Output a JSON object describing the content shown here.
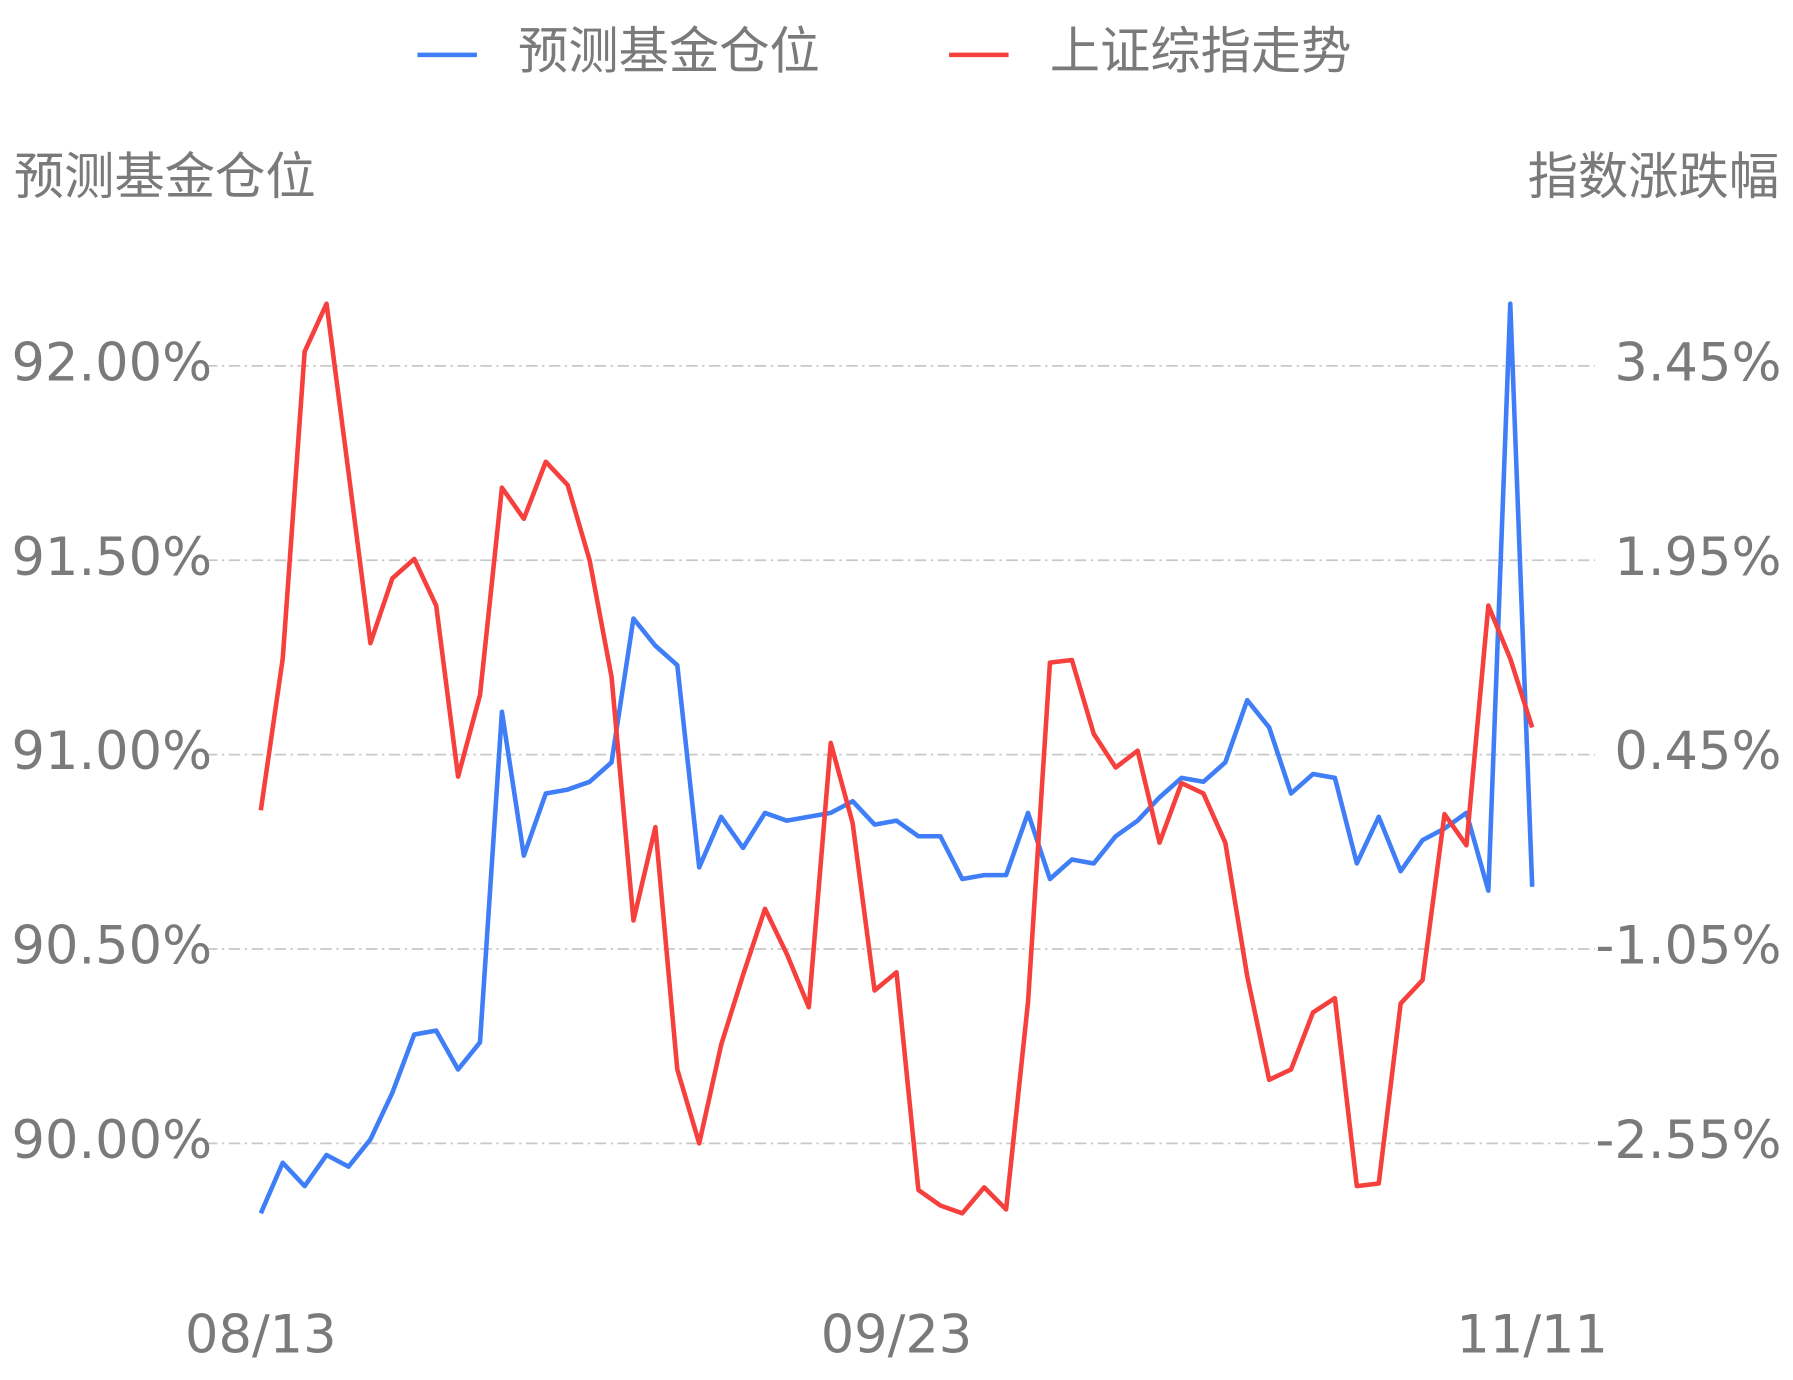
{
  "chart_data": {
    "type": "line",
    "categories": [
      "08/13",
      null,
      null,
      null,
      null,
      null,
      null,
      null,
      null,
      null,
      null,
      null,
      null,
      null,
      null,
      null,
      null,
      null,
      null,
      null,
      null,
      null,
      null,
      null,
      null,
      null,
      null,
      null,
      null,
      "09/23",
      null,
      null,
      null,
      null,
      null,
      null,
      null,
      null,
      null,
      null,
      null,
      null,
      null,
      null,
      null,
      null,
      null,
      null,
      null,
      null,
      null,
      null,
      null,
      null,
      null,
      null,
      null,
      null,
      "11/11"
    ],
    "ylabel": "预测基金仓位",
    "y2label": "指数涨跌幅",
    "ylim": [
      89.75,
      92.25
    ],
    "yticks": [
      {
        "value": 90,
        "label": "90.00%"
      },
      {
        "value": 90.5,
        "label": "90.50%"
      },
      {
        "value": 91,
        "label": "91.00%"
      },
      {
        "value": 91.5,
        "label": "91.50%"
      },
      {
        "value": 92,
        "label": "92.00%"
      }
    ],
    "y2lim": [
      -3.3,
      4.2
    ],
    "y2ticks": [
      {
        "value": -2.55,
        "label": "-2.55%"
      },
      {
        "value": -1.05,
        "label": "-1.05%"
      },
      {
        "value": 0.45,
        "label": "0.45%"
      },
      {
        "value": 1.95,
        "label": "1.95%"
      },
      {
        "value": 3.45,
        "label": "3.45%"
      }
    ],
    "grid": true,
    "series": [
      {
        "name": "预测基金仓位",
        "color": "#3f7ef6",
        "values": [
          89.82,
          89.95,
          89.89,
          89.97,
          89.94,
          90.01,
          90.13,
          90.28,
          90.29,
          90.19,
          90.26,
          91.11,
          90.74,
          90.9,
          90.91,
          90.93,
          90.98,
          91.35,
          91.28,
          91.23,
          90.71,
          90.84,
          90.76,
          90.85,
          90.83,
          90.84,
          90.85,
          90.88,
          90.82,
          90.83,
          90.79,
          90.79,
          90.68,
          90.69,
          90.69,
          90.85,
          90.68,
          90.73,
          90.72,
          90.79,
          90.83,
          90.89,
          90.94,
          90.93,
          90.98,
          91.14,
          91.07,
          90.9,
          90.95,
          90.94,
          90.72,
          90.84,
          90.7,
          90.78,
          90.81,
          90.85,
          90.65,
          92.16,
          90.66
        ]
      },
      {
        "name": "上证综指走势",
        "color": "#f5403d",
        "axis": "y2",
        "values": [
          0.02,
          1.19,
          3.56,
          3.93,
          2.63,
          1.31,
          1.81,
          1.96,
          1.6,
          0.28,
          0.91,
          2.51,
          2.27,
          2.71,
          2.53,
          1.95,
          1.05,
          -0.83,
          -0.11,
          -1.98,
          -2.55,
          -1.79,
          -1.25,
          -0.74,
          -1.09,
          -1.5,
          0.54,
          -0.08,
          -1.37,
          -1.23,
          -2.91,
          -3.03,
          -3.09,
          -2.89,
          -3.06,
          -1.46,
          1.16,
          1.18,
          0.61,
          0.35,
          0.48,
          -0.23,
          0.23,
          0.15,
          -0.23,
          -1.26,
          -2.06,
          -1.98,
          -1.54,
          -1.43,
          -2.88,
          -2.86,
          -1.47,
          -1.29,
          -0.01,
          -0.25,
          1.6,
          1.19,
          0.66
        ]
      }
    ]
  }
}
